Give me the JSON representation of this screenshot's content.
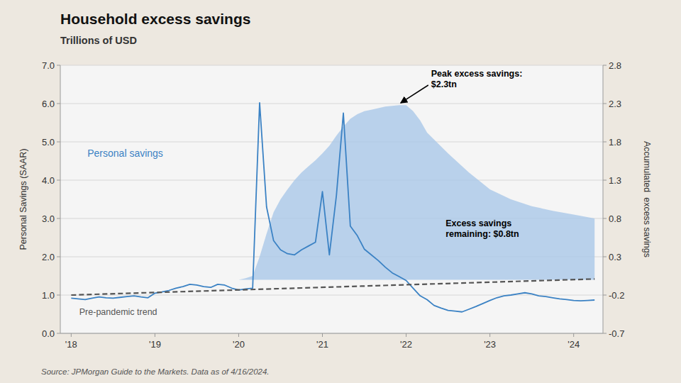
{
  "chart_data": {
    "type": "line",
    "title": "Household excess savings",
    "subtitle": "Trillions of USD",
    "source": "Source: JPMorgan Guide to the Markets. Data as of 4/16/2024.",
    "ylabel": "Personal Savings (SAAR)",
    "y2label": "Accumulated  excess savings",
    "annotations": [
      "Peak excess savings:\n$2.3tn",
      "Excess savings\nremaining: $0.8tn"
    ],
    "xlim": [
      2017.87,
      2024.35
    ],
    "xticks": [
      {
        "value": 2018,
        "label": "'18"
      },
      {
        "value": 2019,
        "label": "'19"
      },
      {
        "value": 2020,
        "label": "'20"
      },
      {
        "value": 2021,
        "label": "'21"
      },
      {
        "value": 2022,
        "label": "'22"
      },
      {
        "value": 2023,
        "label": "'23"
      },
      {
        "value": 2024,
        "label": "'24"
      }
    ],
    "ylim": [
      0.0,
      7.0
    ],
    "yticks": [
      {
        "value": 0.0,
        "label": "0.0"
      },
      {
        "value": 1.0,
        "label": "1.0"
      },
      {
        "value": 2.0,
        "label": "2.0"
      },
      {
        "value": 3.0,
        "label": "3.0"
      },
      {
        "value": 4.0,
        "label": "4.0"
      },
      {
        "value": 5.0,
        "label": "5.0"
      },
      {
        "value": 6.0,
        "label": "6.0"
      },
      {
        "value": 7.0,
        "label": "7.0"
      }
    ],
    "y2lim": [
      -0.7,
      2.8
    ],
    "y2ticks": [
      -0.7,
      -0.2,
      0.3,
      0.8,
      1.3,
      1.8,
      2.3,
      2.8
    ],
    "grid": true,
    "series": [
      {
        "name": "Personal savings",
        "type": "line",
        "color": "#3b82c4",
        "x": [
          2018.0,
          2018.083,
          2018.167,
          2018.25,
          2018.333,
          2018.417,
          2018.5,
          2018.583,
          2018.667,
          2018.75,
          2018.833,
          2018.917,
          2019.0,
          2019.083,
          2019.167,
          2019.25,
          2019.333,
          2019.417,
          2019.5,
          2019.583,
          2019.667,
          2019.75,
          2019.833,
          2019.917,
          2020.0,
          2020.083,
          2020.167,
          2020.25,
          2020.333,
          2020.417,
          2020.5,
          2020.583,
          2020.667,
          2020.75,
          2020.833,
          2020.917,
          2021.0,
          2021.083,
          2021.167,
          2021.25,
          2021.333,
          2021.417,
          2021.5,
          2021.583,
          2021.667,
          2021.75,
          2021.833,
          2021.917,
          2022.0,
          2022.083,
          2022.167,
          2022.25,
          2022.333,
          2022.417,
          2022.5,
          2022.583,
          2022.667,
          2022.75,
          2022.833,
          2022.917,
          2023.0,
          2023.083,
          2023.167,
          2023.25,
          2023.333,
          2023.417,
          2023.5,
          2023.583,
          2023.667,
          2023.75,
          2023.833,
          2023.917,
          2024.0,
          2024.083,
          2024.167,
          2024.25
        ],
        "values": [
          0.92,
          0.9,
          0.88,
          0.92,
          0.95,
          0.93,
          0.92,
          0.94,
          0.96,
          0.98,
          0.95,
          0.93,
          1.05,
          1.08,
          1.12,
          1.18,
          1.22,
          1.28,
          1.26,
          1.22,
          1.2,
          1.28,
          1.26,
          1.18,
          1.13,
          1.16,
          1.18,
          6.02,
          3.3,
          2.42,
          2.18,
          2.08,
          2.05,
          2.18,
          2.28,
          2.38,
          3.7,
          2.05,
          3.6,
          5.75,
          2.8,
          2.55,
          2.2,
          2.05,
          1.9,
          1.73,
          1.58,
          1.48,
          1.38,
          1.18,
          0.98,
          0.88,
          0.73,
          0.66,
          0.6,
          0.58,
          0.56,
          0.63,
          0.7,
          0.78,
          0.86,
          0.93,
          0.98,
          1.0,
          1.03,
          1.06,
          1.03,
          0.98,
          0.96,
          0.93,
          0.9,
          0.88,
          0.86,
          0.85,
          0.86,
          0.87
        ]
      },
      {
        "name": "Pre-pandemic trend",
        "type": "line",
        "line_style": "dashed",
        "color": "#555555",
        "x": [
          2018.0,
          2024.25
        ],
        "values": [
          1.0,
          1.42
        ]
      },
      {
        "type": "area",
        "axis": "y2",
        "color": "#aac8e8",
        "x": [
          2018.0,
          2018.25,
          2018.5,
          2018.75,
          2019.0,
          2019.25,
          2019.5,
          2019.75,
          2020.0,
          2020.083,
          2020.167,
          2020.25,
          2020.333,
          2020.417,
          2020.5,
          2020.583,
          2020.667,
          2020.75,
          2020.833,
          2020.917,
          2021.0,
          2021.083,
          2021.167,
          2021.25,
          2021.333,
          2021.417,
          2021.5,
          2021.583,
          2021.667,
          2021.75,
          2021.833,
          2021.917,
          2022.0,
          2022.083,
          2022.167,
          2022.25,
          2022.5,
          2022.75,
          2023.0,
          2023.25,
          2023.5,
          2023.75,
          2024.0,
          2024.25
        ],
        "values": [
          0.0,
          0.0,
          0.0,
          0.0,
          0.0,
          0.0,
          0.0,
          0.0,
          0.0,
          0.02,
          0.05,
          0.3,
          0.6,
          0.88,
          1.05,
          1.18,
          1.3,
          1.4,
          1.48,
          1.56,
          1.65,
          1.75,
          1.88,
          2.0,
          2.1,
          2.16,
          2.2,
          2.22,
          2.24,
          2.26,
          2.27,
          2.28,
          2.28,
          2.2,
          2.08,
          1.92,
          1.65,
          1.4,
          1.18,
          1.05,
          0.96,
          0.9,
          0.85,
          0.8
        ]
      }
    ]
  }
}
